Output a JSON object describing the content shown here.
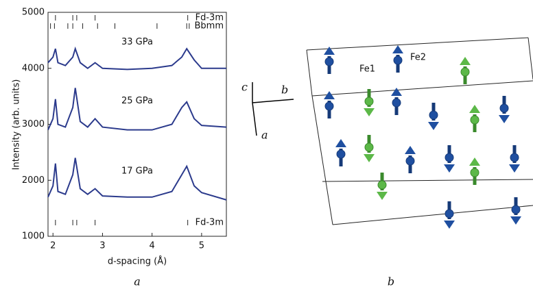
{
  "chart_data": {
    "type": "line",
    "xlabel": "d-spacing (Å)",
    "ylabel": "Intensity (arb. units)",
    "x": [
      1.9,
      2.0,
      2.05,
      2.1,
      2.25,
      2.4,
      2.45,
      2.55,
      2.7,
      2.85,
      3.0,
      3.5,
      4.0,
      4.4,
      4.6,
      4.7,
      4.85,
      5.0,
      5.5
    ],
    "series": [
      {
        "name": "17 GPa",
        "color": "#2b3a8c",
        "values": [
          1700,
          1900,
          2300,
          1800,
          1750,
          2100,
          2400,
          1850,
          1750,
          1850,
          1720,
          1700,
          1700,
          1800,
          2100,
          2250,
          1900,
          1780,
          1650
        ]
      },
      {
        "name": "25 GPa",
        "color": "#2b3a8c",
        "values": [
          2900,
          3100,
          3450,
          3000,
          2950,
          3300,
          3650,
          3050,
          2950,
          3100,
          2950,
          2900,
          2900,
          3000,
          3300,
          3400,
          3100,
          2980,
          2950
        ]
      },
      {
        "name": "33 GPa",
        "color": "#2b3a8c",
        "values": [
          4100,
          4200,
          4350,
          4100,
          4050,
          4200,
          4350,
          4100,
          4000,
          4100,
          4000,
          3980,
          4000,
          4050,
          4200,
          4350,
          4150,
          4000,
          4000
        ]
      }
    ],
    "reflections": [
      {
        "name": "Fd-3m",
        "positions": [
          2.05,
          2.4,
          2.48,
          2.85,
          4.72
        ]
      },
      {
        "name": "Bbmm",
        "positions": [
          1.95,
          2.03,
          2.3,
          2.4,
          2.6,
          2.9,
          3.25,
          4.1,
          4.7,
          4.75
        ]
      },
      {
        "name": "Fd-3m",
        "positions": [
          2.05,
          2.4,
          2.48,
          2.85,
          4.72
        ]
      }
    ],
    "xlim": [
      1.9,
      5.5
    ],
    "xticks": [
      2,
      3,
      4,
      5
    ],
    "ylim": [
      1000,
      5000
    ],
    "yticks": [
      1000,
      2000,
      3000,
      4000,
      5000
    ]
  },
  "diagram": {
    "axes": {
      "c": "c",
      "b": "b",
      "a": "a"
    },
    "sites": [
      "Fe1",
      "Fe2"
    ]
  },
  "panel_labels": [
    "a",
    "b"
  ]
}
